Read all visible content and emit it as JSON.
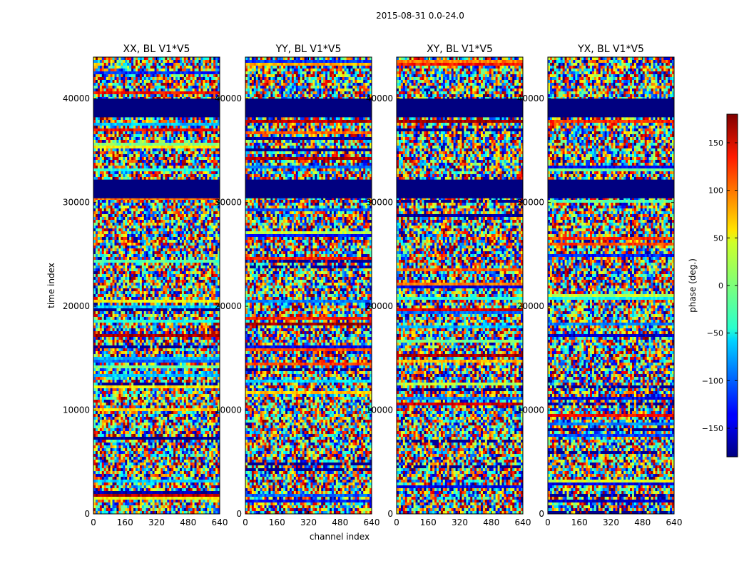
{
  "suptitle": "2015-08-31 0.0-24.0",
  "chart_data": {
    "type": "heatmap",
    "colormap": "jet",
    "xlabel": "channel index",
    "ylabel": "time index",
    "xlim": [
      0,
      640
    ],
    "ylim": [
      0,
      44000
    ],
    "xticks": [
      "0",
      "160",
      "320",
      "480",
      "640"
    ],
    "yticks": [
      "0",
      "10000",
      "20000",
      "30000",
      "40000"
    ],
    "colorbar": {
      "label": "phase (deg.)",
      "range": [
        -180,
        180
      ],
      "ticks": [
        "150",
        "100",
        "50",
        "0",
        "−50",
        "−100",
        "−150"
      ]
    },
    "panels": [
      {
        "title": "XX, BL V1*V5"
      },
      {
        "title": "YY, BL V1*V5"
      },
      {
        "title": "XY, BL V1*V5"
      },
      {
        "title": "YX, BL V1*V5"
      }
    ],
    "flagged_time_ranges": [
      [
        38200,
        40000
      ],
      [
        30400,
        32200
      ]
    ]
  }
}
